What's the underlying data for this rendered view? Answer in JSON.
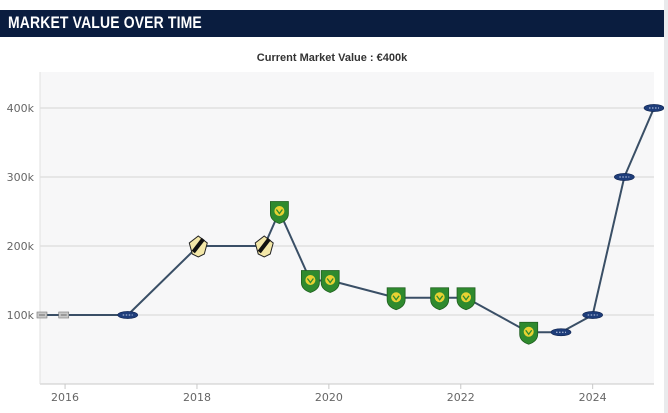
{
  "header": {
    "title": "MARKET VALUE OVER TIME"
  },
  "chart_data": {
    "type": "line",
    "title": "Current Market Value : €400k",
    "xlabel": "",
    "ylabel": "",
    "xlim": [
      2015.62,
      2024.93
    ],
    "ylim": [
      0,
      400000
    ],
    "x_ticks": [
      2016,
      2018,
      2020,
      2022,
      2024
    ],
    "x_tick_labels": [
      "2016",
      "2018",
      "2020",
      "2022",
      "2024"
    ],
    "y_ticks": [
      100000,
      200000,
      300000,
      400000
    ],
    "y_tick_labels": [
      "100k",
      "200k",
      "300k",
      "400k"
    ],
    "grid": "horizontal",
    "legend": "none",
    "line_color": "#3a4f66",
    "series": [
      {
        "x": [
          2015.65,
          2015.98,
          2016.95,
          2018.02,
          2019.02,
          2019.25,
          2019.72,
          2020.02,
          2021.02,
          2021.68,
          2022.08,
          2023.03,
          2023.52,
          2024.0,
          2024.48,
          2024.93
        ],
        "values": [
          100000,
          100000,
          100000,
          200000,
          200000,
          250000,
          150000,
          150000,
          125000,
          125000,
          125000,
          75000,
          75000,
          100000,
          300000,
          400000
        ],
        "markers": [
          "small-grey-crest",
          "small-grey-crest",
          "blue-oval-crest",
          "striped-shield-crest",
          "striped-shield-crest",
          "green-shield-crest",
          "green-shield-crest",
          "green-shield-crest",
          "green-shield-crest",
          "green-shield-crest",
          "green-shield-crest",
          "green-shield-crest",
          "blue-oval-crest",
          "blue-oval-crest",
          "blue-oval-crest",
          "blue-oval-crest"
        ]
      }
    ]
  }
}
